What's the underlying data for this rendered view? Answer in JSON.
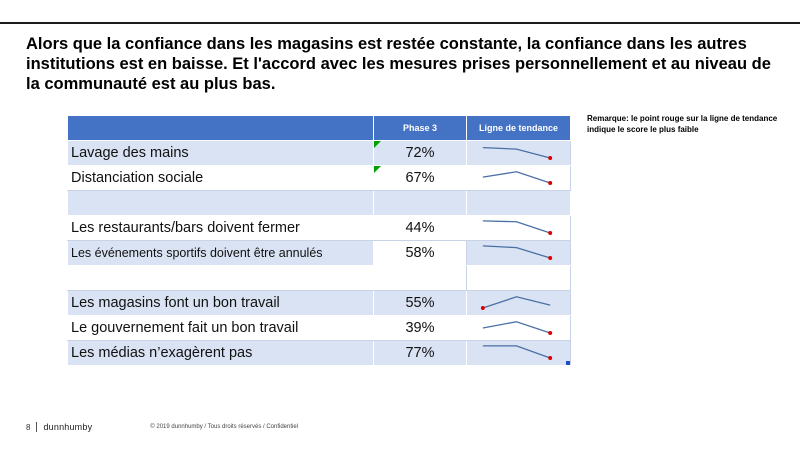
{
  "title": "Alors que la confiance dans les magasins est restée constante, la confiance dans les autres institutions est en baisse. Et l'accord avec les mesures prises personnellement et au niveau de la communauté est au plus bas.",
  "note": "Remarque: le point rouge sur la ligne de tendance indique le score le plus faible",
  "table": {
    "headers": {
      "label": "",
      "phase": "Phase 3",
      "trend": "Ligne de tendance"
    },
    "rows": [
      {
        "label": "Lavage des mains",
        "value": "72%",
        "trend": [
          0.8,
          0.72,
          0.22
        ],
        "flag": true
      },
      {
        "label": "Distanciation sociale",
        "value": "67%",
        "trend": [
          0.55,
          0.85,
          0.22
        ],
        "flag": true
      },
      {
        "label": "",
        "value": ""
      },
      {
        "label": "Les restaurants/bars doivent fermer",
        "value": "44%",
        "trend": [
          0.9,
          0.85,
          0.22
        ]
      },
      {
        "label": "Les événements sportifs doivent être annulés",
        "value": "58%",
        "trend": [
          0.9,
          0.8,
          0.22
        ]
      },
      {
        "label": "",
        "value": ""
      },
      {
        "label": "Les magasins font un bon travail",
        "value": "55%",
        "trend": [
          0.22,
          0.85,
          0.38
        ]
      },
      {
        "label": "Le gouvernement fait un bon travail",
        "value": "39%",
        "trend": [
          0.5,
          0.85,
          0.22
        ]
      },
      {
        "label": "Les médias n’exagèrent pas",
        "value": "77%",
        "trend": [
          0.9,
          0.9,
          0.22
        ]
      }
    ]
  },
  "footer": {
    "page": "8",
    "brand": "dunnhumby",
    "copyright": "© 2019 dunnhumby / Tous droits réservés / Confidentiel"
  },
  "colors": {
    "header": "#4472c4",
    "band": "#dae3f3",
    "trend_line": "#4a6fa5",
    "low_point": "#e00000",
    "flag": "#00a000"
  }
}
